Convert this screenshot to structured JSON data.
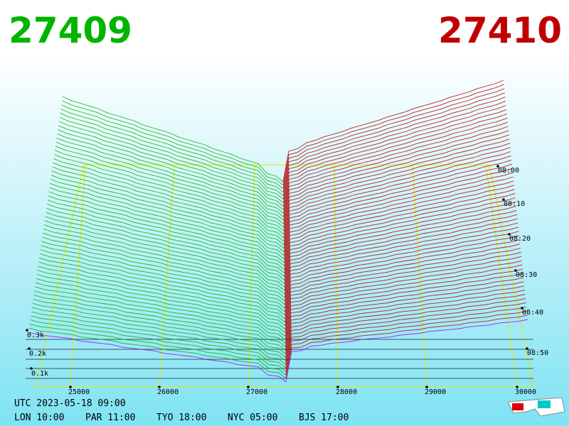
{
  "header": {
    "bid": "27409",
    "ask": "27410"
  },
  "price_axis": [
    "25000",
    "26000",
    "27000",
    "28000",
    "29000",
    "30000"
  ],
  "time_axis": [
    "08:00",
    "08:10",
    "08:20",
    "08:30",
    "08:40",
    "08:50"
  ],
  "depth_axis": [
    "0.3k",
    "0.2k",
    "0.1k"
  ],
  "footer": {
    "utc": "UTC 2023-05-18 09:00",
    "zones": [
      "LON 10:00",
      "PAR 11:00",
      "TYO 18:00",
      "NYC 05:00",
      "BJS 17:00"
    ]
  }
}
